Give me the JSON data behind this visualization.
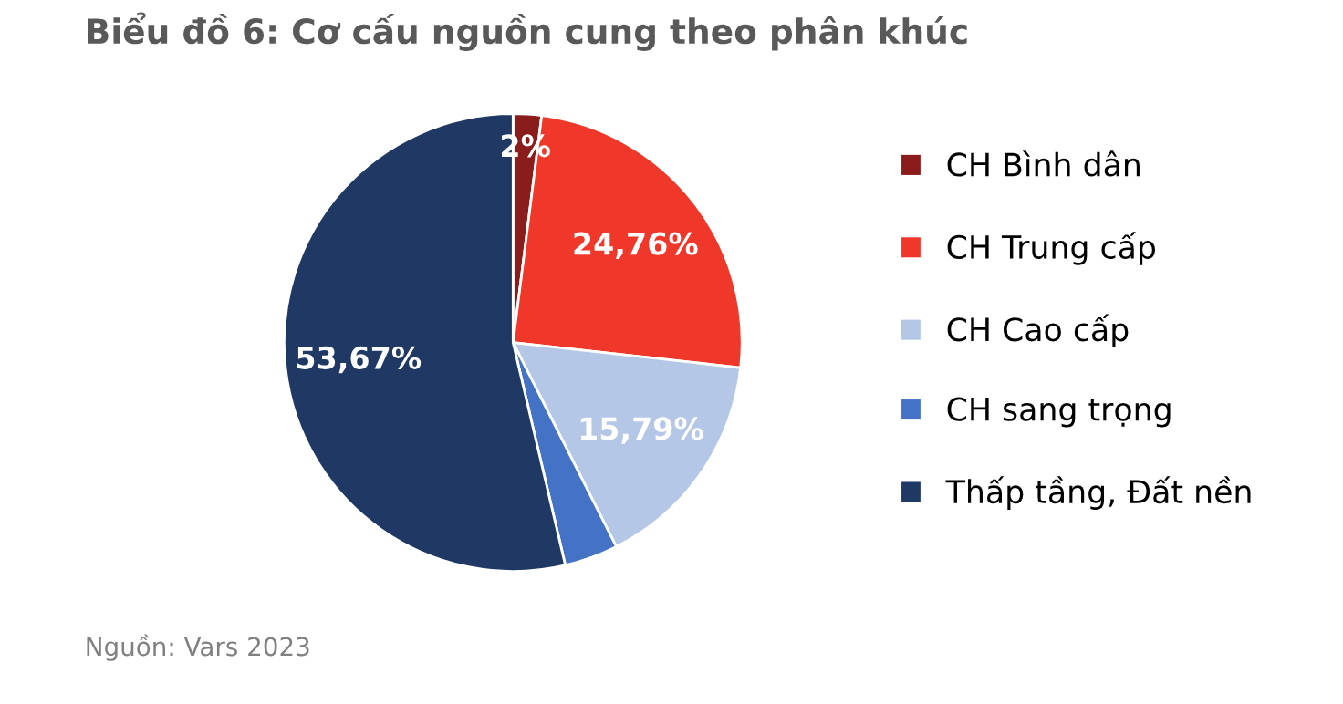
{
  "chart_data": {
    "type": "pie",
    "title": "Biểu đồ 6: Cơ cấu nguồn cung theo phân khúc",
    "categories": [
      "CH Bình dân",
      "CH Trung cấp",
      "CH Cao cấp",
      "CH sang trọng",
      "Thấp tầng, Đất nền"
    ],
    "values": [
      2,
      24.76,
      15.79,
      3.78,
      53.67
    ],
    "value_labels": [
      "2%",
      "24,76%",
      "15,79%",
      null,
      "53,67%"
    ],
    "colors": [
      "#8b1c1c",
      "#f0382a",
      "#b4c7e7",
      "#4472c4",
      "#203864"
    ],
    "legend": "right",
    "annotations": [
      "Nguồn: Vars 2023"
    ]
  }
}
